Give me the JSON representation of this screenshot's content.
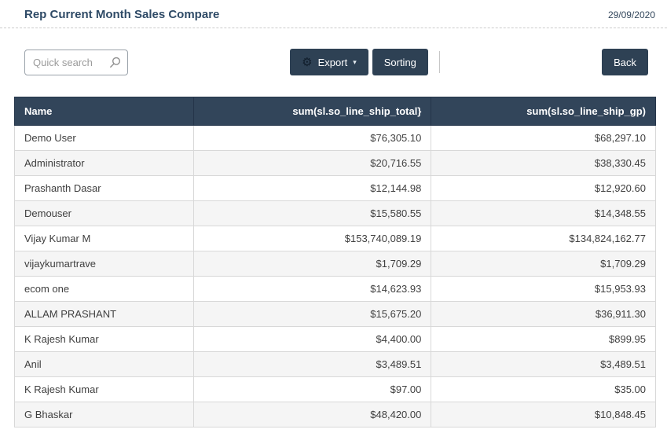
{
  "header": {
    "title": "Rep Current Month Sales Compare",
    "date": "29/09/2020"
  },
  "toolbar": {
    "search_placeholder": "Quick search",
    "export_label": "Export",
    "sorting_label": "Sorting",
    "back_label": "Back",
    "icons": {
      "search": "magnifier-icon",
      "export_prefix": "gear-icon",
      "export_suffix": "caret-down-icon"
    }
  },
  "table": {
    "columns": [
      "Name",
      "sum(sl.so_line_ship_total}",
      "sum(sl.so_line_ship_gp)"
    ],
    "rows": [
      [
        "Demo User",
        "$76,305.10",
        "$68,297.10"
      ],
      [
        "Administrator",
        "$20,716.55",
        "$38,330.45"
      ],
      [
        "Prashanth Dasar",
        "$12,144.98",
        "$12,920.60"
      ],
      [
        "Demouser",
        "$15,580.55",
        "$14,348.55"
      ],
      [
        "Vijay Kumar M",
        "$153,740,089.19",
        "$134,824,162.77"
      ],
      [
        "vijaykumartrave",
        "$1,709.29",
        "$1,709.29"
      ],
      [
        "ecom one",
        "$14,623.93",
        "$15,953.93"
      ],
      [
        "ALLAM PRASHANT",
        "$15,675.20",
        "$36,911.30"
      ],
      [
        "K Rajesh Kumar",
        "$4,400.00",
        "$899.95"
      ],
      [
        "Anil",
        "$3,489.51",
        "$3,489.51"
      ],
      [
        "K Rajesh Kumar",
        "$97.00",
        "$35.00"
      ],
      [
        "G Bhaskar",
        "$48,420.00",
        "$10,848.45"
      ]
    ]
  },
  "colors": {
    "accent_dark": "#32455a",
    "button_dark": "#2e4154",
    "title_text": "#2e4a66",
    "row_alt": "#f5f5f5"
  },
  "glyphs": {
    "gear": "⚙",
    "caret_down": "▾"
  }
}
